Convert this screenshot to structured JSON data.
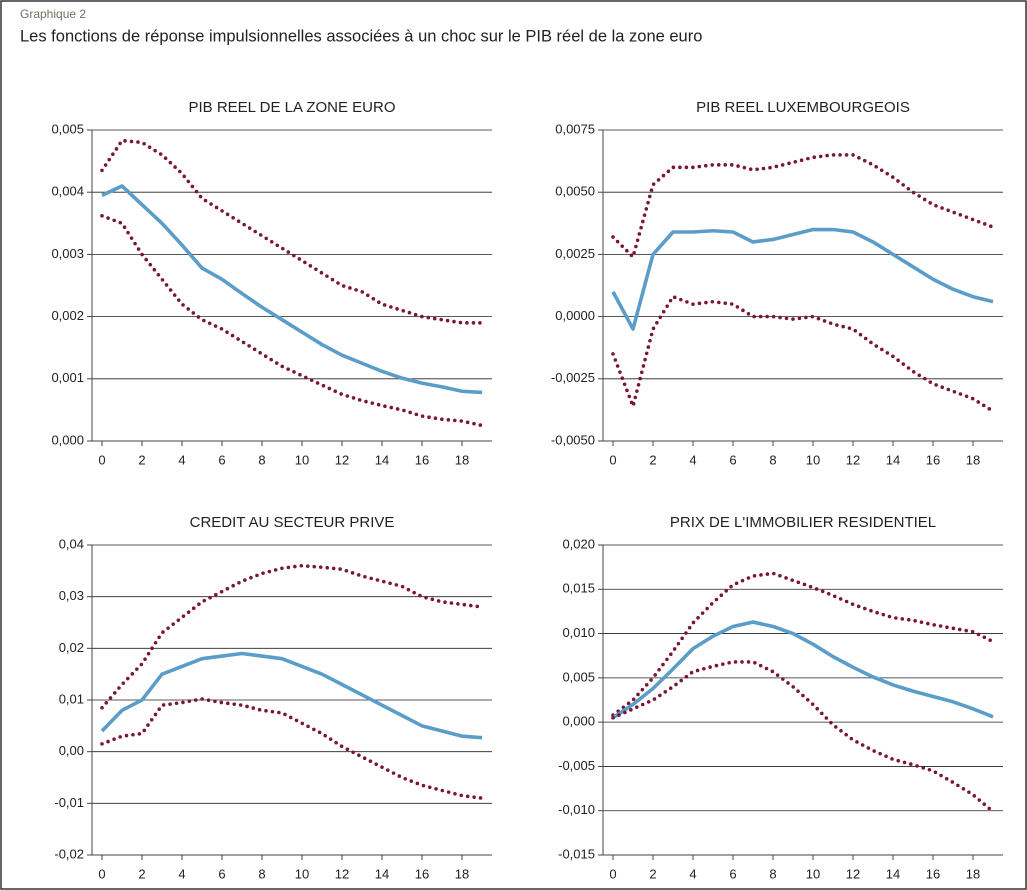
{
  "header": {
    "label": "Graphique 2",
    "title": "Les fonctions de réponse impulsionnelles associées à un choc sur le PIB réel de la zone euro"
  },
  "chart_data": [
    {
      "type": "line",
      "title": "PIB REEL DE LA ZONE EURO",
      "x": [
        0,
        1,
        2,
        3,
        4,
        5,
        6,
        7,
        8,
        9,
        10,
        11,
        12,
        13,
        14,
        15,
        16,
        17,
        18,
        19
      ],
      "xlim": [
        -0.5,
        19.5
      ],
      "xticks": [
        0,
        2,
        4,
        6,
        8,
        10,
        12,
        14,
        16,
        18
      ],
      "ylim": [
        0,
        0.005
      ],
      "yticks": [
        {
          "value": 0,
          "label": "0,000"
        },
        {
          "value": 0.001,
          "label": "0,001"
        },
        {
          "value": 0.002,
          "label": "0,002"
        },
        {
          "value": 0.003,
          "label": "0,003"
        },
        {
          "value": 0.004,
          "label": "0,004"
        },
        {
          "value": 0.005,
          "label": "0,005"
        }
      ],
      "grid": true,
      "series": [
        {
          "color": "#7b1636",
          "style": "dotted",
          "values": [
            0.00435,
            0.00483,
            0.0048,
            0.0046,
            0.0043,
            0.0039,
            0.0037,
            0.0035,
            0.0033,
            0.0031,
            0.0029,
            0.0027,
            0.0025,
            0.0024,
            0.0022,
            0.0021,
            0.002,
            0.00195,
            0.0019,
            0.0019
          ]
        },
        {
          "color": "#5b9dc9",
          "style": "solid",
          "values": [
            0.00395,
            0.0041,
            0.0038,
            0.0035,
            0.00315,
            0.00278,
            0.0026,
            0.00237,
            0.00215,
            0.00195,
            0.00175,
            0.00155,
            0.00138,
            0.00125,
            0.00112,
            0.00101,
            0.00093,
            0.00087,
            0.0008,
            0.00078
          ]
        },
        {
          "color": "#7b1636",
          "style": "dotted",
          "values": [
            0.00362,
            0.0035,
            0.003,
            0.0026,
            0.0022,
            0.00195,
            0.0018,
            0.0016,
            0.0014,
            0.0012,
            0.00105,
            0.0009,
            0.00075,
            0.00065,
            0.00057,
            0.0005,
            0.0004,
            0.00035,
            0.00032,
            0.00025
          ]
        }
      ]
    },
    {
      "type": "line",
      "title": "PIB REEL LUXEMBOURGEOIS",
      "x": [
        0,
        1,
        2,
        3,
        4,
        5,
        6,
        7,
        8,
        9,
        10,
        11,
        12,
        13,
        14,
        15,
        16,
        17,
        18,
        19
      ],
      "xlim": [
        -0.5,
        19.5
      ],
      "xticks": [
        0,
        2,
        4,
        6,
        8,
        10,
        12,
        14,
        16,
        18
      ],
      "ylim": [
        -0.005,
        0.0075
      ],
      "yticks": [
        {
          "value": -0.005,
          "label": "-0,0050"
        },
        {
          "value": -0.0025,
          "label": "-0,0025"
        },
        {
          "value": 0,
          "label": "0,0000"
        },
        {
          "value": 0.0025,
          "label": "0,0025"
        },
        {
          "value": 0.005,
          "label": "0,0050"
        },
        {
          "value": 0.0075,
          "label": "0,0075"
        }
      ],
      "grid": true,
      "series": [
        {
          "color": "#7b1636",
          "style": "dotted",
          "values": [
            0.0032,
            0.0024,
            0.0053,
            0.006,
            0.006,
            0.0061,
            0.0061,
            0.0059,
            0.006,
            0.0062,
            0.0064,
            0.0065,
            0.0065,
            0.0061,
            0.0056,
            0.005,
            0.0045,
            0.0042,
            0.0039,
            0.0036
          ]
        },
        {
          "color": "#5b9dc9",
          "style": "solid",
          "values": [
            0.001,
            -0.0005,
            0.0025,
            0.0034,
            0.0034,
            0.00345,
            0.0034,
            0.003,
            0.0031,
            0.0033,
            0.0035,
            0.0035,
            0.0034,
            0.003,
            0.0025,
            0.002,
            0.0015,
            0.0011,
            0.0008,
            0.0006
          ]
        },
        {
          "color": "#7b1636",
          "style": "dotted",
          "values": [
            -0.0015,
            -0.0036,
            -0.0005,
            0.0008,
            0.0005,
            0.0006,
            0.0005,
            0,
            0,
            -0.0001,
            0,
            -0.0003,
            -0.0005,
            -0.0011,
            -0.0016,
            -0.0022,
            -0.0027,
            -0.003,
            -0.0033,
            -0.0038
          ]
        }
      ]
    },
    {
      "type": "line",
      "title": "CREDIT AU SECTEUR PRIVE",
      "x": [
        0,
        1,
        2,
        3,
        4,
        5,
        6,
        7,
        8,
        9,
        10,
        11,
        12,
        13,
        14,
        15,
        16,
        17,
        18,
        19
      ],
      "xlim": [
        -0.5,
        19.5
      ],
      "xticks": [
        0,
        2,
        4,
        6,
        8,
        10,
        12,
        14,
        16,
        18
      ],
      "ylim": [
        -0.02,
        0.04
      ],
      "yticks": [
        {
          "value": -0.02,
          "label": "-0,02"
        },
        {
          "value": -0.01,
          "label": "-0,01"
        },
        {
          "value": 0,
          "label": "0,00"
        },
        {
          "value": 0.01,
          "label": "0,01"
        },
        {
          "value": 0.02,
          "label": "0,02"
        },
        {
          "value": 0.03,
          "label": "0,03"
        },
        {
          "value": 0.04,
          "label": "0,04"
        }
      ],
      "grid": true,
      "series": [
        {
          "color": "#7b1636",
          "style": "dotted",
          "values": [
            0.0085,
            0.013,
            0.017,
            0.023,
            0.026,
            0.029,
            0.031,
            0.033,
            0.0345,
            0.0355,
            0.036,
            0.0357,
            0.0353,
            0.034,
            0.033,
            0.032,
            0.03,
            0.029,
            0.0285,
            0.028
          ]
        },
        {
          "color": "#5b9dc9",
          "style": "solid",
          "values": [
            0.004,
            0.008,
            0.01,
            0.015,
            0.0165,
            0.018,
            0.0185,
            0.019,
            0.0185,
            0.018,
            0.0165,
            0.015,
            0.013,
            0.011,
            0.009,
            0.007,
            0.005,
            0.004,
            0.003,
            0.0027
          ]
        },
        {
          "color": "#7b1636",
          "style": "dotted",
          "values": [
            0.0015,
            0.003,
            0.0035,
            0.009,
            0.0095,
            0.0102,
            0.0095,
            0.009,
            0.008,
            0.0075,
            0.0055,
            0.0035,
            0.001,
            -0.001,
            -0.003,
            -0.005,
            -0.0065,
            -0.0075,
            -0.0085,
            -0.009
          ]
        }
      ]
    },
    {
      "type": "line",
      "title": "PRIX DE L'IMMOBILIER RESIDENTIEL",
      "x": [
        0,
        1,
        2,
        3,
        4,
        5,
        6,
        7,
        8,
        9,
        10,
        11,
        12,
        13,
        14,
        15,
        16,
        17,
        18,
        19
      ],
      "xlim": [
        -0.5,
        19.5
      ],
      "xticks": [
        0,
        2,
        4,
        6,
        8,
        10,
        12,
        14,
        16,
        18
      ],
      "ylim": [
        -0.015,
        0.02
      ],
      "yticks": [
        {
          "value": -0.015,
          "label": "-0,015"
        },
        {
          "value": -0.01,
          "label": "-0,010"
        },
        {
          "value": -0.005,
          "label": "-0,005"
        },
        {
          "value": 0,
          "label": "0,000"
        },
        {
          "value": 0.005,
          "label": "0,005"
        },
        {
          "value": 0.01,
          "label": "0,010"
        },
        {
          "value": 0.015,
          "label": "0,015"
        },
        {
          "value": 0.02,
          "label": "0,020"
        }
      ],
      "grid": true,
      "series": [
        {
          "color": "#7b1636",
          "style": "dotted",
          "values": [
            0.0008,
            0.0025,
            0.005,
            0.008,
            0.0112,
            0.0135,
            0.0155,
            0.0165,
            0.0168,
            0.016,
            0.0152,
            0.0143,
            0.0133,
            0.0125,
            0.0118,
            0.0115,
            0.011,
            0.0106,
            0.0102,
            0.0091
          ]
        },
        {
          "color": "#5b9dc9",
          "style": "solid",
          "values": [
            0.0005,
            0.002,
            0.0038,
            0.006,
            0.0083,
            0.0097,
            0.0108,
            0.0113,
            0.0108,
            0.01,
            0.0088,
            0.0074,
            0.0062,
            0.0051,
            0.0042,
            0.0035,
            0.0029,
            0.0023,
            0.0015,
            0.0006
          ]
        },
        {
          "color": "#7b1636",
          "style": "dotted",
          "values": [
            0.0005,
            0.0015,
            0.0025,
            0.004,
            0.0057,
            0.0063,
            0.0068,
            0.0068,
            0.0057,
            0.004,
            0.002,
            -0.0003,
            -0.002,
            -0.0032,
            -0.0042,
            -0.0048,
            -0.0055,
            -0.0068,
            -0.0082,
            -0.0101
          ]
        }
      ]
    }
  ]
}
